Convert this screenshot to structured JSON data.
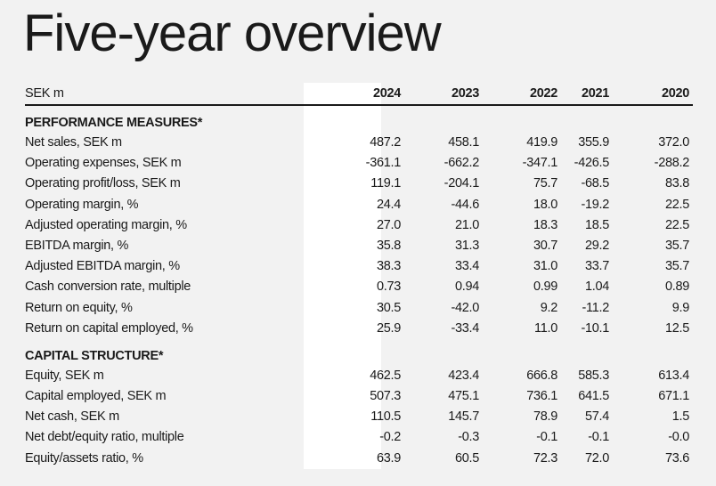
{
  "title": "Five-year overview",
  "header": {
    "unit": "SEK m",
    "years": [
      "2024",
      "2023",
      "2022",
      "2021",
      "2020"
    ]
  },
  "sections": [
    {
      "heading": "PERFORMANCE MEASURES*",
      "rows": [
        {
          "label": "Net sales, SEK m",
          "values": [
            "487.2",
            "458.1",
            "419.9",
            "355.9",
            "372.0"
          ]
        },
        {
          "label": "Operating expenses, SEK m",
          "values": [
            "-361.1",
            "-662.2",
            "-347.1",
            "-426.5",
            "-288.2"
          ]
        },
        {
          "label": "Operating profit/loss, SEK m",
          "values": [
            "119.1",
            "-204.1",
            "75.7",
            "-68.5",
            "83.8"
          ]
        },
        {
          "label": "Operating margin, %",
          "values": [
            "24.4",
            "-44.6",
            "18.0",
            "-19.2",
            "22.5"
          ]
        },
        {
          "label": "Adjusted operating margin, %",
          "values": [
            "27.0",
            "21.0",
            "18.3",
            "18.5",
            "22.5"
          ]
        },
        {
          "label": "EBITDA margin, %",
          "values": [
            "35.8",
            "31.3",
            "30.7",
            "29.2",
            "35.7"
          ]
        },
        {
          "label": "Adjusted EBITDA margin, %",
          "values": [
            "38.3",
            "33.4",
            "31.0",
            "33.7",
            "35.7"
          ]
        },
        {
          "label": "Cash conversion rate, multiple",
          "values": [
            "0.73",
            "0.94",
            "0.99",
            "1.04",
            "0.89"
          ]
        },
        {
          "label": "Return on equity, %",
          "values": [
            "30.5",
            "-42.0",
            "9.2",
            "-11.2",
            "9.9"
          ]
        },
        {
          "label": "Return on capital employed, %",
          "values": [
            "25.9",
            "-33.4",
            "11.0",
            "-10.1",
            "12.5"
          ]
        }
      ]
    },
    {
      "heading": "CAPITAL STRUCTURE*",
      "rows": [
        {
          "label": "Equity, SEK m",
          "values": [
            "462.5",
            "423.4",
            "666.8",
            "585.3",
            "613.4"
          ]
        },
        {
          "label": "Capital employed, SEK m",
          "values": [
            "507.3",
            "475.1",
            "736.1",
            "641.5",
            "671.1"
          ]
        },
        {
          "label": "Net cash, SEK m",
          "values": [
            "110.5",
            "145.7",
            "78.9",
            "57.4",
            "1.5"
          ]
        },
        {
          "label": "Net debt/equity ratio, multiple",
          "values": [
            "-0.2",
            "-0.3",
            "-0.1",
            "-0.1",
            "-0.0"
          ]
        },
        {
          "label": "Equity/assets ratio, %",
          "values": [
            "63.9",
            "60.5",
            "72.3",
            "72.0",
            "73.6"
          ]
        }
      ]
    }
  ]
}
